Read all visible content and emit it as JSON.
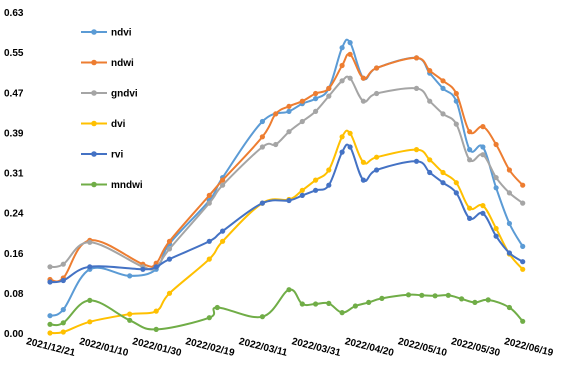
{
  "chart_data": {
    "type": "line",
    "title": "",
    "xlabel": "",
    "ylabel": "",
    "ylim": [
      0.0,
      0.63
    ],
    "y_ticks": [
      "0.63",
      "0.55",
      "0.47",
      "0.39",
      "0.31",
      "0.24",
      "0.16",
      "0.08",
      "0.00"
    ],
    "x_tick_labels": [
      "2021/12/21",
      "2022/01/10",
      "2022/01/30",
      "2022/02/19",
      "2022/03/11",
      "2022/03/31",
      "2022/04/20",
      "2022/05/10",
      "2022/05/30",
      "2022/06/19"
    ],
    "x_range": [
      "2021-12-21",
      "2022-06-19"
    ],
    "grid": false,
    "legend_position": "top-left",
    "series": [
      {
        "name": "ndvi",
        "color": "#5b9bd5",
        "points": [
          [
            "2021-12-21",
            0.034
          ],
          [
            "2021-12-26",
            0.046
          ],
          [
            "2022-01-05",
            0.125
          ],
          [
            "2022-01-20",
            0.112
          ],
          [
            "2022-01-30",
            0.125
          ],
          [
            "2022-02-04",
            0.175
          ],
          [
            "2022-02-19",
            0.26
          ],
          [
            "2022-02-24",
            0.305
          ],
          [
            "2022-03-11",
            0.415
          ],
          [
            "2022-03-21",
            0.435
          ],
          [
            "2022-03-26",
            0.45
          ],
          [
            "2022-03-31",
            0.46
          ],
          [
            "2022-04-05",
            0.48
          ],
          [
            "2022-04-10",
            0.56
          ],
          [
            "2022-04-13",
            0.57
          ],
          [
            "2022-04-18",
            0.5
          ],
          [
            "2022-04-23",
            0.52
          ],
          [
            "2022-05-08",
            0.54
          ],
          [
            "2022-05-13",
            0.51
          ],
          [
            "2022-05-18",
            0.48
          ],
          [
            "2022-05-23",
            0.455
          ],
          [
            "2022-05-28",
            0.36
          ],
          [
            "2022-06-02",
            0.365
          ],
          [
            "2022-06-07",
            0.285
          ],
          [
            "2022-06-12",
            0.215
          ],
          [
            "2022-06-17",
            0.17
          ]
        ]
      },
      {
        "name": "ndwi",
        "color": "#ed7d31",
        "points": [
          [
            "2021-12-21",
            0.105
          ],
          [
            "2021-12-26",
            0.108
          ],
          [
            "2022-01-05",
            0.182
          ],
          [
            "2022-01-25",
            0.135
          ],
          [
            "2022-01-30",
            0.137
          ],
          [
            "2022-02-04",
            0.18
          ],
          [
            "2022-02-19",
            0.27
          ],
          [
            "2022-02-24",
            0.3
          ],
          [
            "2022-03-11",
            0.385
          ],
          [
            "2022-03-16",
            0.43
          ],
          [
            "2022-03-21",
            0.445
          ],
          [
            "2022-03-26",
            0.455
          ],
          [
            "2022-03-31",
            0.47
          ],
          [
            "2022-04-05",
            0.48
          ],
          [
            "2022-04-10",
            0.525
          ],
          [
            "2022-04-13",
            0.547
          ],
          [
            "2022-04-18",
            0.5
          ],
          [
            "2022-04-23",
            0.52
          ],
          [
            "2022-05-08",
            0.54
          ],
          [
            "2022-05-13",
            0.515
          ],
          [
            "2022-05-18",
            0.495
          ],
          [
            "2022-05-23",
            0.47
          ],
          [
            "2022-05-28",
            0.395
          ],
          [
            "2022-06-02",
            0.405
          ],
          [
            "2022-06-07",
            0.37
          ],
          [
            "2022-06-12",
            0.32
          ],
          [
            "2022-06-17",
            0.29
          ]
        ]
      },
      {
        "name": "gndvi",
        "color": "#a5a5a5",
        "points": [
          [
            "2021-12-21",
            0.13
          ],
          [
            "2021-12-26",
            0.135
          ],
          [
            "2022-01-05",
            0.178
          ],
          [
            "2022-01-25",
            0.13
          ],
          [
            "2022-01-30",
            0.13
          ],
          [
            "2022-02-04",
            0.165
          ],
          [
            "2022-02-19",
            0.255
          ],
          [
            "2022-02-24",
            0.29
          ],
          [
            "2022-03-11",
            0.365
          ],
          [
            "2022-03-16",
            0.37
          ],
          [
            "2022-03-21",
            0.395
          ],
          [
            "2022-03-26",
            0.415
          ],
          [
            "2022-03-31",
            0.435
          ],
          [
            "2022-04-05",
            0.465
          ],
          [
            "2022-04-10",
            0.495
          ],
          [
            "2022-04-13",
            0.5
          ],
          [
            "2022-04-18",
            0.455
          ],
          [
            "2022-04-23",
            0.47
          ],
          [
            "2022-05-08",
            0.48
          ],
          [
            "2022-05-13",
            0.455
          ],
          [
            "2022-05-18",
            0.43
          ],
          [
            "2022-05-23",
            0.41
          ],
          [
            "2022-05-28",
            0.34
          ],
          [
            "2022-06-02",
            0.35
          ],
          [
            "2022-06-07",
            0.305
          ],
          [
            "2022-06-12",
            0.275
          ],
          [
            "2022-06-17",
            0.255
          ]
        ]
      },
      {
        "name": "dvi",
        "color": "#ffc000",
        "points": [
          [
            "2021-12-21",
            0.0
          ],
          [
            "2021-12-26",
            0.002
          ],
          [
            "2022-01-05",
            0.022
          ],
          [
            "2022-01-20",
            0.037
          ],
          [
            "2022-01-30",
            0.043
          ],
          [
            "2022-02-04",
            0.078
          ],
          [
            "2022-02-19",
            0.145
          ],
          [
            "2022-02-24",
            0.18
          ],
          [
            "2022-03-11",
            0.255
          ],
          [
            "2022-03-21",
            0.262
          ],
          [
            "2022-03-26",
            0.28
          ],
          [
            "2022-03-31",
            0.3
          ],
          [
            "2022-04-05",
            0.32
          ],
          [
            "2022-04-10",
            0.385
          ],
          [
            "2022-04-13",
            0.392
          ],
          [
            "2022-04-18",
            0.335
          ],
          [
            "2022-04-23",
            0.345
          ],
          [
            "2022-05-08",
            0.36
          ],
          [
            "2022-05-13",
            0.34
          ],
          [
            "2022-05-18",
            0.315
          ],
          [
            "2022-05-23",
            0.295
          ],
          [
            "2022-05-28",
            0.245
          ],
          [
            "2022-06-02",
            0.25
          ],
          [
            "2022-06-07",
            0.205
          ],
          [
            "2022-06-12",
            0.155
          ],
          [
            "2022-06-17",
            0.125
          ]
        ]
      },
      {
        "name": "rvi",
        "color": "#4472c4",
        "points": [
          [
            "2021-12-21",
            0.1
          ],
          [
            "2021-12-26",
            0.103
          ],
          [
            "2022-01-05",
            0.13
          ],
          [
            "2022-01-25",
            0.125
          ],
          [
            "2022-01-30",
            0.13
          ],
          [
            "2022-02-04",
            0.145
          ],
          [
            "2022-02-19",
            0.18
          ],
          [
            "2022-02-24",
            0.2
          ],
          [
            "2022-03-11",
            0.255
          ],
          [
            "2022-03-21",
            0.26
          ],
          [
            "2022-03-26",
            0.27
          ],
          [
            "2022-03-31",
            0.28
          ],
          [
            "2022-04-05",
            0.29
          ],
          [
            "2022-04-10",
            0.355
          ],
          [
            "2022-04-13",
            0.365
          ],
          [
            "2022-04-18",
            0.3
          ],
          [
            "2022-04-23",
            0.32
          ],
          [
            "2022-05-08",
            0.337
          ],
          [
            "2022-05-13",
            0.315
          ],
          [
            "2022-05-18",
            0.295
          ],
          [
            "2022-05-23",
            0.275
          ],
          [
            "2022-05-28",
            0.225
          ],
          [
            "2022-06-02",
            0.235
          ],
          [
            "2022-06-07",
            0.19
          ],
          [
            "2022-06-12",
            0.157
          ],
          [
            "2022-06-17",
            0.14
          ]
        ]
      },
      {
        "name": "mndwi",
        "color": "#70ad47",
        "points": [
          [
            "2021-12-21",
            0.017
          ],
          [
            "2021-12-26",
            0.02
          ],
          [
            "2022-01-05",
            0.064
          ],
          [
            "2022-01-20",
            0.025
          ],
          [
            "2022-01-30",
            0.007
          ],
          [
            "2022-02-19",
            0.03
          ],
          [
            "2022-02-22",
            0.05
          ],
          [
            "2022-03-11",
            0.032
          ],
          [
            "2022-03-21",
            0.085
          ],
          [
            "2022-03-26",
            0.057
          ],
          [
            "2022-03-31",
            0.057
          ],
          [
            "2022-04-05",
            0.058
          ],
          [
            "2022-04-10",
            0.04
          ],
          [
            "2022-04-15",
            0.053
          ],
          [
            "2022-04-20",
            0.06
          ],
          [
            "2022-04-25",
            0.068
          ],
          [
            "2022-05-05",
            0.075
          ],
          [
            "2022-05-10",
            0.074
          ],
          [
            "2022-05-15",
            0.073
          ],
          [
            "2022-05-20",
            0.074
          ],
          [
            "2022-05-25",
            0.067
          ],
          [
            "2022-05-30",
            0.06
          ],
          [
            "2022-06-04",
            0.065
          ],
          [
            "2022-06-12",
            0.05
          ],
          [
            "2022-06-17",
            0.023
          ]
        ]
      }
    ]
  }
}
